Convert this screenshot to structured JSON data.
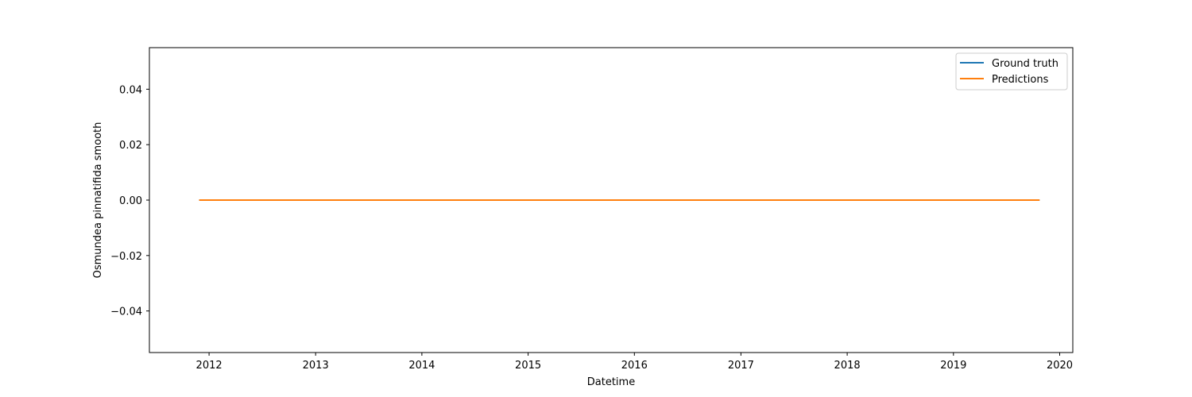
{
  "chart_data": {
    "type": "line",
    "title": "",
    "xlabel": "Datetime",
    "ylabel": "Osmundea pinnatifida smooth",
    "x_ticks": [
      "2012",
      "2013",
      "2014",
      "2015",
      "2016",
      "2017",
      "2018",
      "2019",
      "2020"
    ],
    "y_ticks": [
      "0.04",
      "0.02",
      "0.00",
      "−0.02",
      "−0.04"
    ],
    "y_tick_values": [
      0.04,
      0.02,
      0.0,
      -0.02,
      -0.04
    ],
    "xlim": [
      "2011-06-10",
      "2020-02-15"
    ],
    "ylim": [
      -0.055,
      0.055
    ],
    "grid": false,
    "legend_position": "top-right",
    "series": [
      {
        "name": "Ground truth",
        "color": "#1f77b4",
        "x": [
          "2011-11-28",
          "2019-10-24"
        ],
        "values": [
          0.0,
          0.0
        ]
      },
      {
        "name": "Predictions",
        "color": "#ff7f0e",
        "x": [
          "2011-11-28",
          "2019-10-24"
        ],
        "values": [
          0.0,
          0.0
        ]
      }
    ]
  }
}
